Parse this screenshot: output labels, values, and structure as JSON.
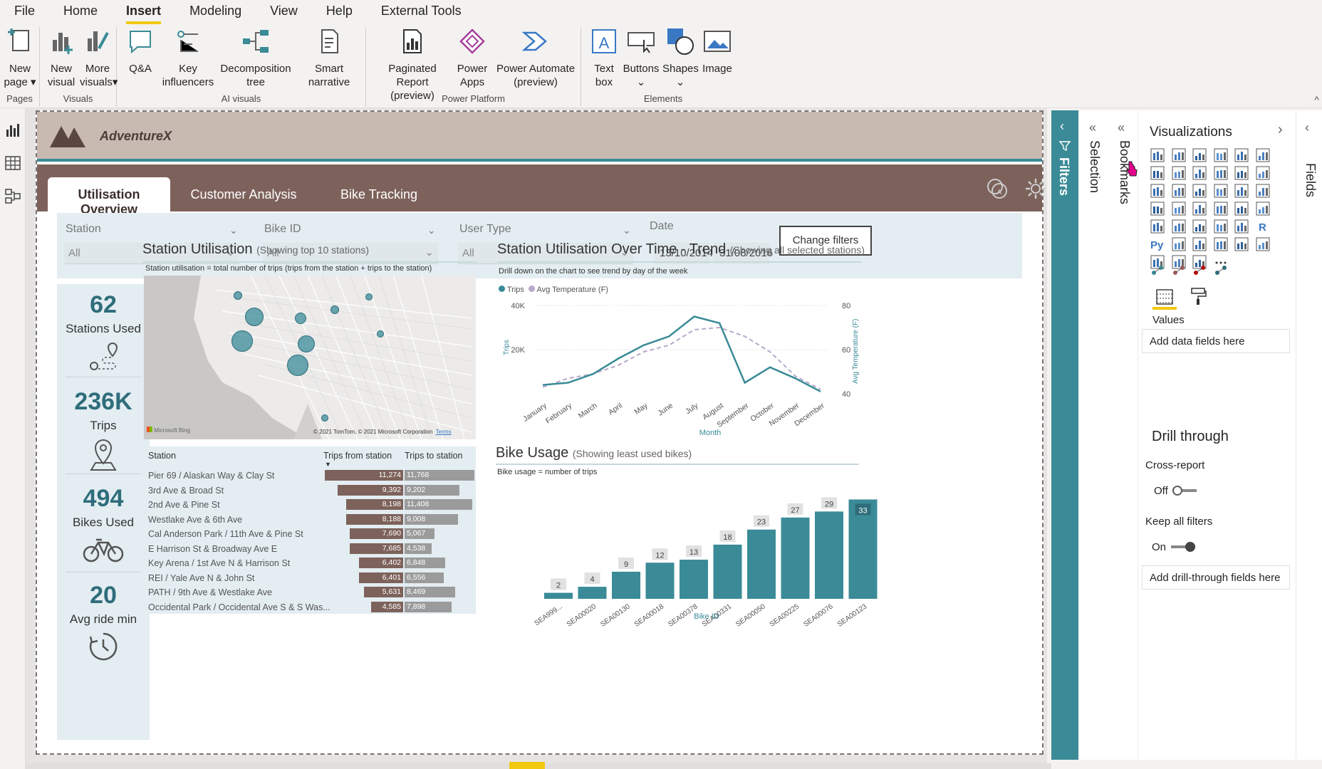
{
  "menu": [
    "File",
    "Home",
    "Insert",
    "Modeling",
    "View",
    "Help",
    "External Tools"
  ],
  "menu_active": "Insert",
  "ribbon": {
    "groups": {
      "pages": "Pages",
      "visuals": "Visuals",
      "ai": "AI visuals",
      "power": "Power Platform",
      "elements": "Elements"
    },
    "new_page": [
      "New",
      "page"
    ],
    "new_visual": [
      "New",
      "visual"
    ],
    "more_visuals": [
      "More",
      "visuals"
    ],
    "qa": "Q&A",
    "key_influencers": [
      "Key",
      "influencers"
    ],
    "decomposition_tree": [
      "Decomposition",
      "tree"
    ],
    "smart_narrative": [
      "Smart",
      "narrative"
    ],
    "paginated_report": [
      "Paginated Report",
      "(preview)"
    ],
    "power_apps": [
      "Power",
      "Apps"
    ],
    "power_automate": [
      "Power Automate",
      "(preview)"
    ],
    "text_box": [
      "Text",
      "box"
    ],
    "buttons": "Buttons",
    "shapes": "Shapes",
    "image": "Image"
  },
  "report": {
    "brand": "AdventureX",
    "tabs": [
      "Utilisation Overview",
      "Customer Analysis",
      "Bike Tracking"
    ],
    "active_tab": "Utilisation Overview",
    "filters": {
      "station": {
        "label": "Station",
        "value": "All"
      },
      "bike_id": {
        "label": "Bike ID",
        "value": "All"
      },
      "user_type": {
        "label": "User Type",
        "value": "All"
      },
      "date": {
        "label": "Date",
        "from": "13/10/2014",
        "to": "31/08/2016"
      },
      "change_button": "Change filters"
    },
    "kpis": [
      {
        "value": "62",
        "label": "Stations Used",
        "icon": "map-route-icon"
      },
      {
        "value": "236K",
        "label": "Trips",
        "icon": "location-pin-icon"
      },
      {
        "value": "494",
        "label": "Bikes Used",
        "icon": "bicycle-icon"
      },
      {
        "value": "20",
        "label": "Avg ride min",
        "icon": "clock-icon"
      }
    ],
    "station_util": {
      "title": "Station Utilisation",
      "subtitle": "(Showing top 10 stations)",
      "note": "Station utilisation = total number of trips (trips from the station + trips to the station)",
      "map_attr": "© 2021 TomTom, © 2021 Microsoft Corporation",
      "map_terms": "Terms",
      "map_brand": "Microsoft Bing",
      "col_station": "Station",
      "col_from": "Trips from station",
      "col_to": "Trips to station",
      "rows": [
        {
          "station": "Pier 69 / Alaskan Way & Clay St",
          "from": 11274,
          "to": 11768,
          "from_label": "11,274",
          "to_label": "11,768"
        },
        {
          "station": "3rd Ave & Broad St",
          "from": 9392,
          "to": 9202,
          "from_label": "9,392",
          "to_label": "9,202"
        },
        {
          "station": "2nd Ave & Pine St",
          "from": 8198,
          "to": 11408,
          "from_label": "8,198",
          "to_label": "11,408"
        },
        {
          "station": "Westlake Ave & 6th Ave",
          "from": 8188,
          "to": 9008,
          "from_label": "8,188",
          "to_label": "9,008"
        },
        {
          "station": "Cal Anderson Park / 11th Ave & Pine St",
          "from": 7690,
          "to": 5067,
          "from_label": "7,690",
          "to_label": "5,067"
        },
        {
          "station": "E Harrison St & Broadway Ave E",
          "from": 7685,
          "to": 4538,
          "from_label": "7,685",
          "to_label": "4,538"
        },
        {
          "station": "Key Arena / 1st Ave N & Harrison St",
          "from": 6402,
          "to": 6848,
          "from_label": "6,402",
          "to_label": "6,848"
        },
        {
          "station": "REI / Yale Ave N & John St",
          "from": 6401,
          "to": 6556,
          "from_label": "6,401",
          "to_label": "6,556"
        },
        {
          "station": "PATH / 9th Ave & Westlake Ave",
          "from": 5631,
          "to": 8469,
          "from_label": "5,631",
          "to_label": "8,469"
        },
        {
          "station": "Occidental Park / Occidental Ave S & S Was...",
          "from": 4585,
          "to": 7898,
          "from_label": "4,585",
          "to_label": "7,898"
        }
      ]
    },
    "trend": {
      "title": "Station Utilisation Over Time - Trend",
      "subtitle": "(Showing all selected stations)",
      "note": "Drill down on the chart to see trend by day of the week",
      "legend_trips": "Trips",
      "legend_temp": "Avg Temperature (F)",
      "xlabel": "Month",
      "ylabel_left": "Trips",
      "ylabel_right": "Avg Temperature (F)",
      "left_ticks": [
        "40K",
        "20K"
      ],
      "right_ticks": [
        "80",
        "60",
        "40"
      ]
    },
    "bike_usage": {
      "title": "Bike Usage",
      "subtitle": "(Showing least used bikes)",
      "note": "Bike usage = number of trips",
      "xlabel": "Bike ID"
    }
  },
  "chart_data": [
    {
      "type": "line",
      "title": "Station Utilisation Over Time - Trend",
      "xlabel": "Month",
      "ylabel": "Trips",
      "categories": [
        "January",
        "February",
        "March",
        "April",
        "May",
        "June",
        "July",
        "August",
        "September",
        "October",
        "November",
        "December"
      ],
      "series": [
        {
          "name": "Trips",
          "axis": "left",
          "values": [
            4000,
            5000,
            9000,
            16000,
            22000,
            26000,
            35000,
            32000,
            5000,
            12000,
            7000,
            1000
          ]
        },
        {
          "name": "Avg Temperature (F)",
          "axis": "right",
          "values": [
            43,
            47,
            49,
            53,
            59,
            62,
            69,
            70,
            66,
            59,
            48,
            42
          ]
        }
      ],
      "ylim_left": [
        0,
        40000
      ],
      "ylim_right": [
        40,
        80
      ]
    },
    {
      "type": "bar",
      "title": "Bike Usage",
      "xlabel": "Bike ID",
      "categories": [
        "SEA999...",
        "SEA00020",
        "SEA00130",
        "SEA00018",
        "SEA00378",
        "SEA00331",
        "SEA00050",
        "SEA00225",
        "SEA00076",
        "SEA00123"
      ],
      "values": [
        2,
        4,
        9,
        12,
        13,
        18,
        23,
        27,
        29,
        33
      ],
      "ylim": [
        0,
        35
      ]
    }
  ],
  "panes": {
    "filters": "Filters",
    "selection": "Selection",
    "bookmarks": "Bookmarks",
    "visualizations": "Visualizations",
    "fields": "Fields",
    "values_label": "Values",
    "add_data_fields": "Add data fields here",
    "drill_through": "Drill through",
    "cross_report": "Cross-report",
    "cross_report_state": "Off",
    "keep_all_filters": "Keep all filters",
    "keep_all_filters_state": "On",
    "add_drill_fields": "Add drill-through fields here"
  },
  "colors": {
    "accent": "#3a8b97",
    "brown": "#7d625b",
    "header": "#c8b9b1",
    "gray_bar": "#9b9b9b",
    "ribbon_highlight": "#f2c811"
  }
}
